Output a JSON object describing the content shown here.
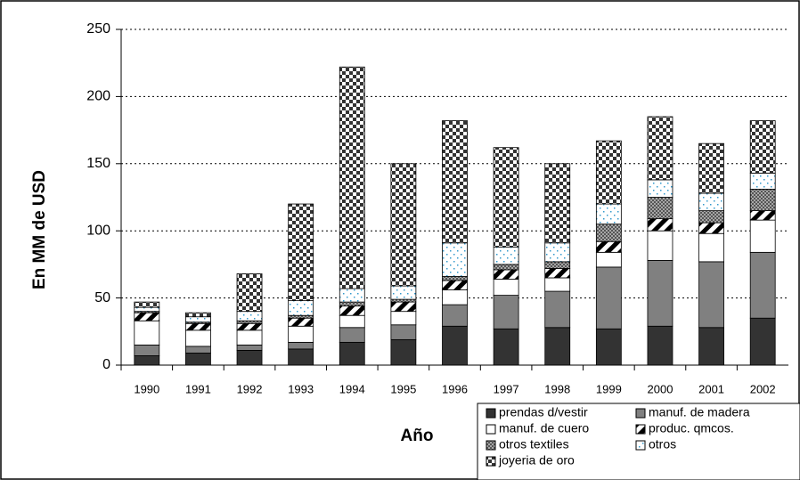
{
  "chart_data": {
    "type": "stacked_bar",
    "x_label": "Año",
    "y_label": "En MM de USD",
    "categories": [
      "1990",
      "1991",
      "1992",
      "1993",
      "1994",
      "1995",
      "1996",
      "1997",
      "1998",
      "1999",
      "2000",
      "2001",
      "2002"
    ],
    "series": [
      {
        "name": "prendas d/vestir",
        "color": "#333333",
        "values": [
          7,
          9,
          11,
          12,
          17,
          19,
          29,
          27,
          28,
          27,
          29,
          28,
          35
        ]
      },
      {
        "name": "manuf. de madera",
        "color": "#808080",
        "values": [
          8,
          5,
          4,
          5,
          11,
          11,
          16,
          25,
          27,
          46,
          49,
          49,
          49
        ]
      },
      {
        "name": "manuf. de cuero",
        "color": "#ffffff",
        "values": [
          18,
          12,
          11,
          12,
          9,
          10,
          11,
          12,
          10,
          11,
          22,
          21,
          24
        ]
      },
      {
        "name": "produc. qmcos.",
        "color": "#ffffff",
        "values": [
          6,
          5,
          5,
          6,
          7,
          7,
          7,
          7,
          7,
          8,
          9,
          8,
          7
        ]
      },
      {
        "name": "otros textiles",
        "color": "#a6a6a6",
        "values": [
          1,
          1,
          2,
          2,
          3,
          2,
          3,
          4,
          5,
          13,
          16,
          9,
          16
        ]
      },
      {
        "name": "otros",
        "color": "#ffffff",
        "values": [
          3,
          4,
          7,
          11,
          10,
          10,
          25,
          13,
          14,
          15,
          13,
          13,
          12
        ]
      },
      {
        "name": "joyeria de oro",
        "color": "#ffffff",
        "values": [
          4,
          3,
          28,
          72,
          165,
          91,
          91,
          74,
          59,
          47,
          47,
          37,
          39
        ]
      }
    ],
    "ylim": [
      0,
      250
    ],
    "yticks": [
      0,
      50,
      100,
      150,
      200,
      250
    ],
    "grid": true
  }
}
